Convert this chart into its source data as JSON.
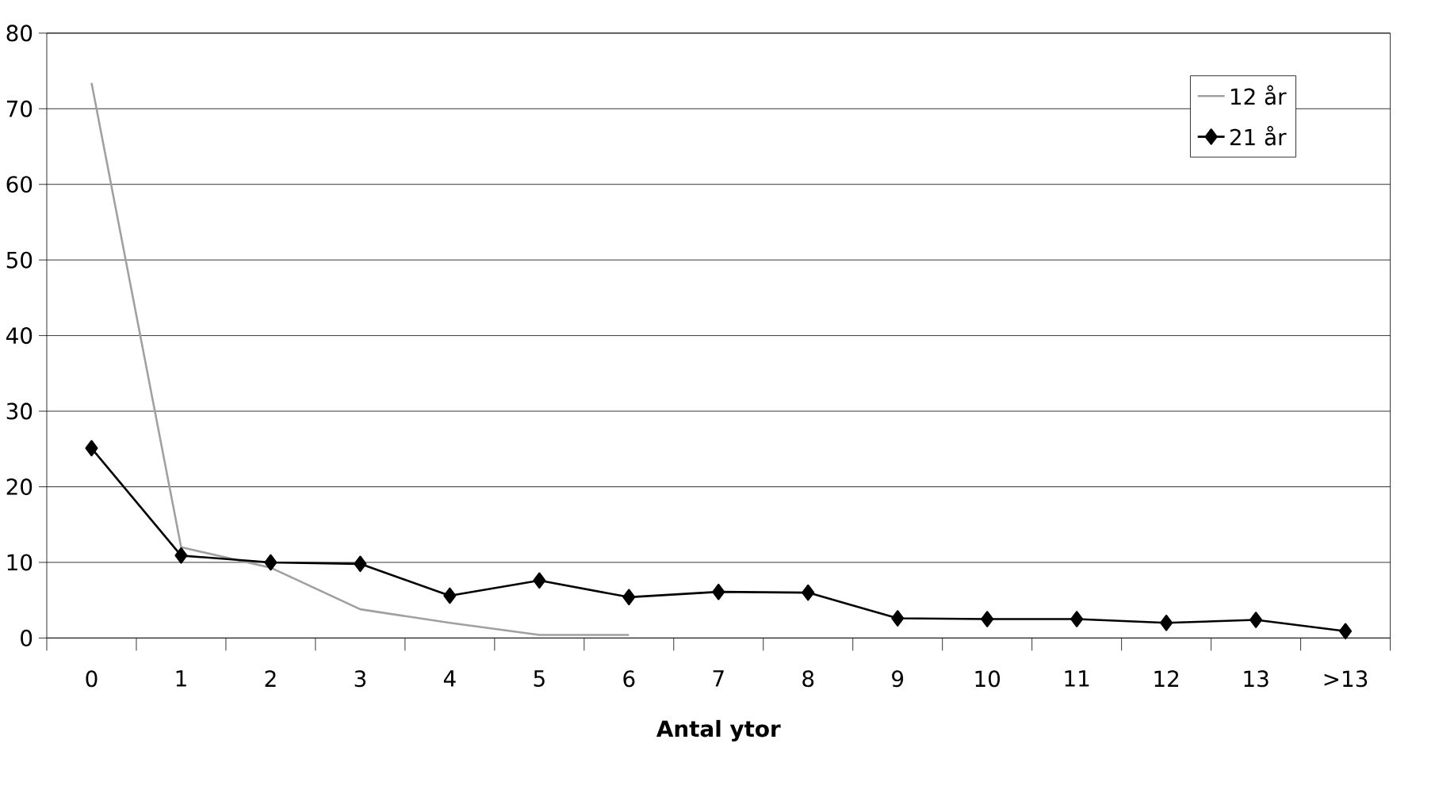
{
  "chart_data": {
    "type": "line",
    "xlabel": "Antal ytor",
    "categories": [
      "0",
      "1",
      "2",
      "3",
      "4",
      "5",
      "6",
      "7",
      "8",
      "9",
      "10",
      "11",
      "12",
      "13",
      ">13"
    ],
    "series": [
      {
        "name": "12 år",
        "color": "#a0a0a0",
        "marker": "none",
        "values": [
          73.4,
          12.0,
          9.3,
          3.8,
          2.0,
          0.4,
          0.4,
          null,
          null,
          null,
          null,
          null,
          null,
          null,
          null
        ]
      },
      {
        "name": "21 år",
        "color": "#000000",
        "marker": "diamond",
        "values": [
          25.1,
          10.9,
          10.0,
          9.8,
          5.6,
          7.6,
          5.4,
          6.1,
          6.0,
          2.6,
          2.5,
          2.5,
          2.0,
          2.4,
          0.9
        ]
      }
    ],
    "ylim": [
      0,
      80
    ],
    "yticks": [
      0,
      10,
      20,
      30,
      40,
      50,
      60,
      70,
      80
    ],
    "grid": "y",
    "legend": "top right"
  }
}
